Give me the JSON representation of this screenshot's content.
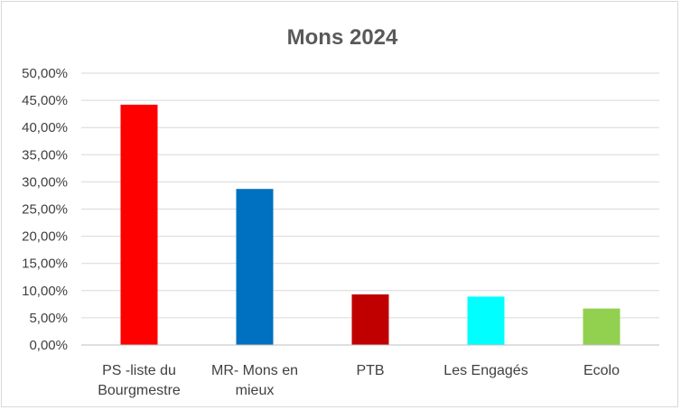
{
  "chart_data": {
    "type": "bar",
    "title": "Mons 2024",
    "xlabel": "",
    "ylabel": "",
    "categories": [
      [
        "PS -liste du",
        "Bourgmestre"
      ],
      [
        "MR- Mons en",
        "mieux"
      ],
      [
        "PTB"
      ],
      [
        "Les Engagés"
      ],
      [
        "Ecolo"
      ]
    ],
    "values": [
      44.2,
      28.7,
      9.3,
      8.9,
      6.7
    ],
    "colors": [
      "#ff0000",
      "#0070c0",
      "#c00000",
      "#00ffff",
      "#92d050"
    ],
    "ylim": [
      0,
      50
    ],
    "yticks": [
      0,
      5,
      10,
      15,
      20,
      25,
      30,
      35,
      40,
      45,
      50
    ],
    "ytick_labels": [
      "0,00%",
      "5,00%",
      "10,00%",
      "15,00%",
      "20,00%",
      "25,00%",
      "30,00%",
      "35,00%",
      "40,00%",
      "45,00%",
      "50,00%"
    ],
    "grid": true,
    "legend": "none"
  }
}
